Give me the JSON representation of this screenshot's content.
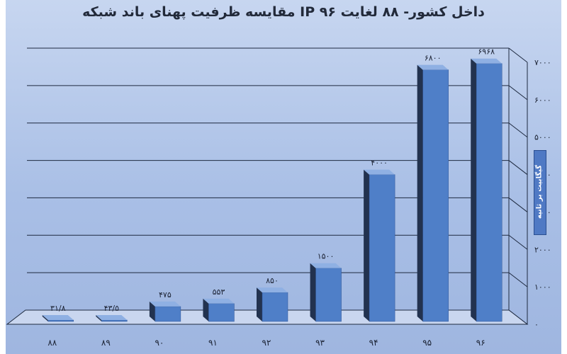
{
  "chart_data": {
    "type": "bar",
    "title": "مقایسه ظرفیت پهنای باند شبکه IP داخل کشور- ۸۸ لغایت ۹۶",
    "ylabel": "گیگابیت بر ثانیه",
    "categories": [
      "۸۸",
      "۸۹",
      "۹۰",
      "۹۱",
      "۹۲",
      "۹۳",
      "۹۴",
      "۹۵",
      "۹۶"
    ],
    "values": [
      31.8,
      43.5,
      475,
      553,
      850,
      1500,
      4000,
      6800,
      6968
    ],
    "value_labels": [
      "۳۱/۸",
      "۴۳/۵",
      "۴۷۵",
      "۵۵۳",
      "۸۵۰",
      "۱۵۰۰",
      "۴۰۰۰",
      "۶۸۰۰",
      "۶۹۶۸"
    ],
    "yticks": [
      0,
      1000,
      2000,
      3000,
      4000,
      5000,
      6000,
      7000
    ],
    "ytick_labels": [
      "۰",
      "۱۰۰۰",
      "۲۰۰۰",
      "۳۰۰۰",
      "۴۰۰۰",
      "۵۰۰۰",
      "۶۰۰۰",
      "۷۰۰۰"
    ],
    "ylim": [
      0,
      7000
    ],
    "grid": true,
    "colors": {
      "bar_front": "#4f7fc8",
      "bar_side": "#22324f",
      "bar_top": "#8fb0e3",
      "grid": "#1e2a40"
    }
  }
}
